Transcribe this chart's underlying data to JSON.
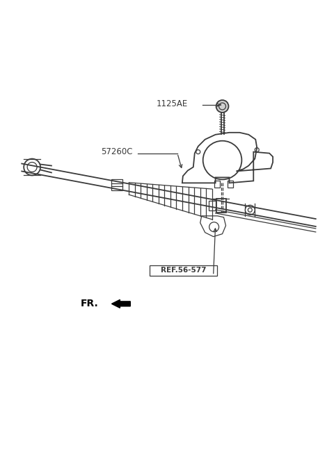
{
  "bg_color": "#ffffff",
  "line_color": "#3a3a3a",
  "label_1125AE": "1125AE",
  "label_57260C": "57260C",
  "label_REF": "REF.56-577",
  "label_FR": "FR.",
  "fig_width": 4.8,
  "fig_height": 6.55,
  "dpi": 100
}
